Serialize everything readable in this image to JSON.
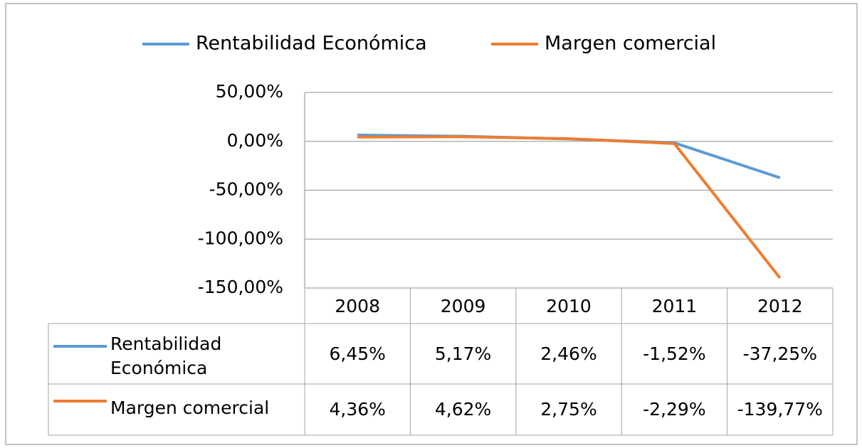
{
  "chart_data": {
    "type": "line",
    "categories": [
      "2008",
      "2009",
      "2010",
      "2011",
      "2012"
    ],
    "series": [
      {
        "name": "Rentabilidad Económica",
        "color": "#5b9bd5",
        "values": [
          6.45,
          5.17,
          2.46,
          -1.52,
          -37.25
        ],
        "value_labels": [
          "6,45%",
          "5,17%",
          "2,46%",
          "-1,52%",
          "-37,25%"
        ]
      },
      {
        "name": "Margen comercial",
        "color": "#ed7d31",
        "values": [
          4.36,
          4.62,
          2.75,
          -2.29,
          -139.77
        ],
        "value_labels": [
          "4,36%",
          "4,62%",
          "2,75%",
          "-2,29%",
          "-139,77%"
        ]
      }
    ],
    "ylim": [
      -150,
      50
    ],
    "yticks": [
      {
        "value": -150,
        "label": "-150,00%"
      },
      {
        "value": -100,
        "label": "-100,00%"
      },
      {
        "value": -50,
        "label": "-50,00%"
      },
      {
        "value": 0,
        "label": "0,00%"
      },
      {
        "value": 50,
        "label": "50,00%"
      }
    ],
    "grid": true,
    "legend": "top"
  }
}
